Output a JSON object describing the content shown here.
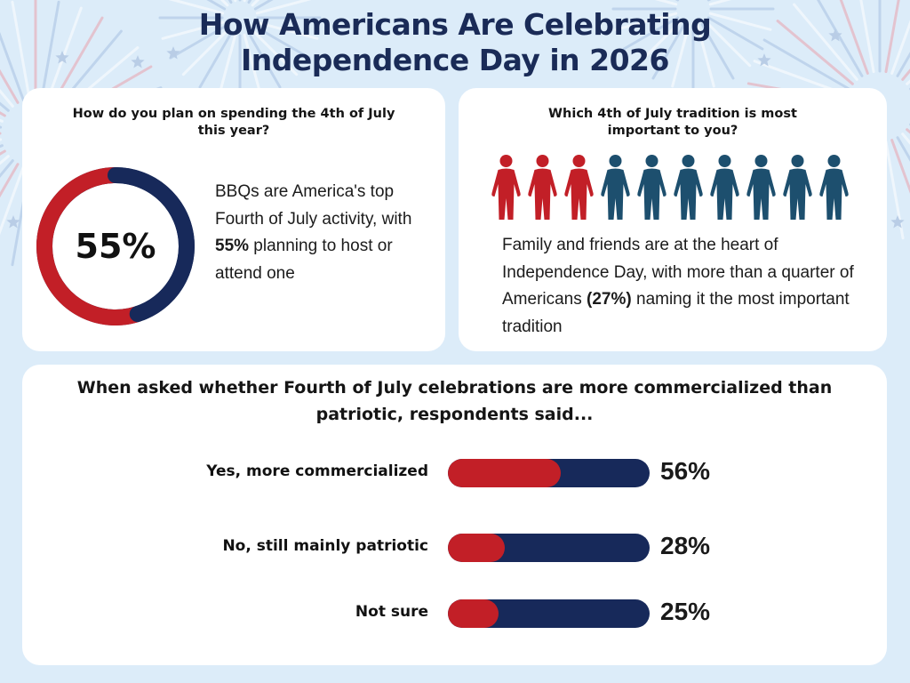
{
  "title_line1": "How Americans Are Celebrating",
  "title_line2": "Independence Day in 2026",
  "colors": {
    "red": "#c21f27",
    "navy": "#17295a",
    "teal": "#1d4f6e",
    "background": "#dcecf9"
  },
  "spending": {
    "question": "How do you plan on spending the 4th of July this year?",
    "value": 55,
    "value_label": "55%",
    "desc_before": "BBQs are America's top Fourth of July activity, with ",
    "desc_bold": "55%",
    "desc_after": " planning to host or attend one"
  },
  "tradition": {
    "question": "Which 4th of July tradition is most important to you?",
    "highlighted_people": 3,
    "total_people": 10,
    "desc_before": "Family and friends are at the heart of Independence Day, with more than a quarter of Americans ",
    "desc_bold": "(27%)",
    "desc_after": " naming it the most important tradition"
  },
  "chart_data": {
    "type": "bar",
    "title": "When asked whether Fourth of July celebrations are more commercialized than patriotic, respondents said...",
    "categories": [
      "Yes, more commercialized",
      "No, still mainly patriotic",
      "Not sure"
    ],
    "values": [
      56,
      28,
      25
    ],
    "value_labels": [
      "56%",
      "28%",
      "25%"
    ],
    "ylim": [
      0,
      100
    ]
  }
}
